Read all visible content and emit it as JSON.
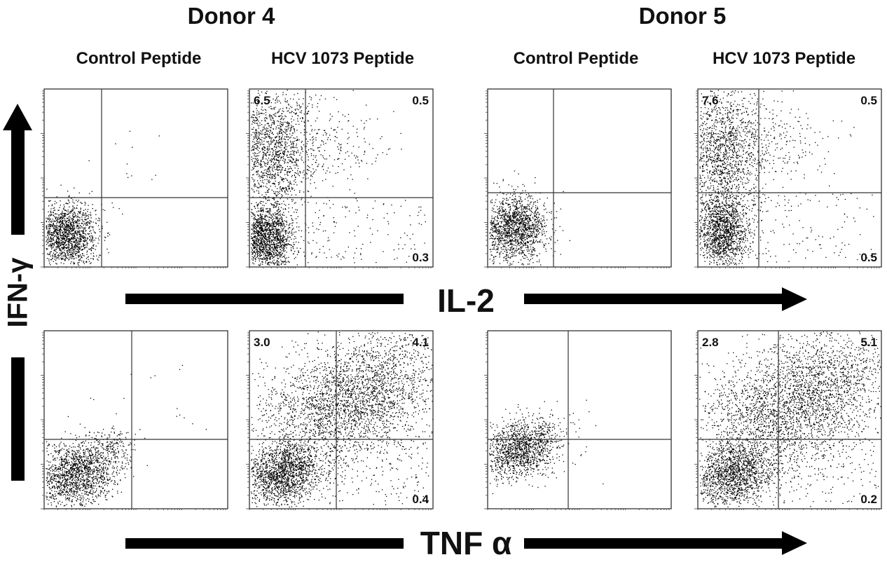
{
  "figure": {
    "donors": [
      {
        "title": "Donor 4"
      },
      {
        "title": "Donor 5"
      }
    ],
    "column_titles": [
      "Control Peptide",
      "HCV 1073 Peptide",
      "Control Peptide",
      "HCV 1073 Peptide"
    ],
    "y_axis_label": "IFN-γ",
    "row_axis_labels": [
      "IL-2",
      "TNF α"
    ]
  },
  "colors": {
    "dots": "#000000",
    "frame": "#333333",
    "background": "#ffffff"
  },
  "chart_data": [
    {
      "type": "scatter",
      "donor": "Donor 4",
      "condition": "Control Peptide",
      "x_marker": "IL-2",
      "y_marker": "IFN-γ",
      "quadrants": {
        "upper_left": "",
        "upper_right": "",
        "lower_right": ""
      }
    },
    {
      "type": "scatter",
      "donor": "Donor 4",
      "condition": "HCV 1073 Peptide",
      "x_marker": "IL-2",
      "y_marker": "IFN-γ",
      "quadrants": {
        "upper_left": "6.5",
        "upper_right": "0.5",
        "lower_right": "0.3"
      }
    },
    {
      "type": "scatter",
      "donor": "Donor 5",
      "condition": "Control Peptide",
      "x_marker": "IL-2",
      "y_marker": "IFN-γ",
      "quadrants": {
        "upper_left": "",
        "upper_right": "",
        "lower_right": ""
      }
    },
    {
      "type": "scatter",
      "donor": "Donor 5",
      "condition": "HCV 1073 Peptide",
      "x_marker": "IL-2",
      "y_marker": "IFN-γ",
      "quadrants": {
        "upper_left": "7.6",
        "upper_right": "0.5",
        "lower_right": "0.5"
      }
    },
    {
      "type": "scatter",
      "donor": "Donor 4",
      "condition": "Control Peptide",
      "x_marker": "TNF α",
      "y_marker": "IFN-γ",
      "quadrants": {
        "upper_left": "",
        "upper_right": "",
        "lower_right": ""
      }
    },
    {
      "type": "scatter",
      "donor": "Donor 4",
      "condition": "HCV 1073 Peptide",
      "x_marker": "TNF α",
      "y_marker": "IFN-γ",
      "quadrants": {
        "upper_left": "3.0",
        "upper_right": "4.1",
        "lower_right": "0.4"
      }
    },
    {
      "type": "scatter",
      "donor": "Donor 5",
      "condition": "Control Peptide",
      "x_marker": "TNF α",
      "y_marker": "IFN-γ",
      "quadrants": {
        "upper_left": "",
        "upper_right": "",
        "lower_right": ""
      }
    },
    {
      "type": "scatter",
      "donor": "Donor 5",
      "condition": "HCV 1073 Peptide",
      "x_marker": "TNF α",
      "y_marker": "IFN-γ",
      "quadrants": {
        "upper_left": "2.8",
        "upper_right": "5.1",
        "lower_right": "0.2"
      }
    }
  ]
}
